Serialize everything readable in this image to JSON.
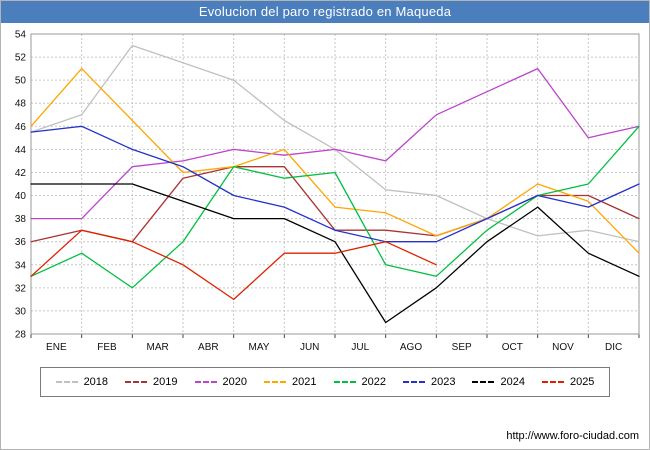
{
  "window": {
    "title": "Evolucion del paro registrado en Maqueda"
  },
  "chart_data": {
    "type": "line",
    "title": "Evolucion del paro registrado en Maqueda",
    "title_bar_color": "#4a7ebc",
    "x_tick_labels": [
      "ENE",
      "FEB",
      "MAR",
      "ABR",
      "MAY",
      "JUN",
      "JUL",
      "AGO",
      "SEP",
      "OCT",
      "NOV",
      "DIC"
    ],
    "ylim": [
      28,
      54
    ],
    "y_ticks": [
      28,
      30,
      32,
      34,
      36,
      38,
      40,
      42,
      44,
      46,
      48,
      50,
      52,
      54
    ],
    "grid": true,
    "legend_position": "bottom",
    "note": "Each series has 13 plotted points: the first at the left plot edge, then one per month gridline ENE-DIC. 2025 ends in AGO.",
    "series": [
      {
        "name": "2018",
        "color": "#c0c0c0",
        "values": [
          45.5,
          47,
          53,
          51.5,
          50,
          46.5,
          44,
          40.5,
          40,
          38,
          36.5,
          37,
          36
        ]
      },
      {
        "name": "2019",
        "color": "#aa3333",
        "values": [
          36,
          37,
          36,
          41.5,
          42.5,
          42.5,
          37,
          37,
          36.5,
          38,
          40,
          40,
          38
        ]
      },
      {
        "name": "2020",
        "color": "#bb44cc",
        "values": [
          38,
          38,
          42.5,
          43,
          44,
          43.5,
          44,
          43,
          47,
          49,
          51,
          45,
          46
        ]
      },
      {
        "name": "2021",
        "color": "#ffa500",
        "values": [
          46,
          51,
          46.5,
          42,
          42.5,
          44,
          39,
          38.5,
          36.5,
          38,
          41,
          39.5,
          35
        ]
      },
      {
        "name": "2022",
        "color": "#00c040",
        "values": [
          33,
          35,
          32,
          36,
          42.5,
          41.5,
          42,
          34,
          33,
          37,
          40,
          41,
          46
        ]
      },
      {
        "name": "2023",
        "color": "#2233cc",
        "values": [
          45.5,
          46,
          44,
          42.5,
          40,
          39,
          37,
          36,
          36,
          38,
          40,
          39,
          41
        ]
      },
      {
        "name": "2024",
        "color": "#000000",
        "values": [
          41,
          41,
          41,
          39.5,
          38,
          38,
          36,
          29,
          32,
          36,
          39,
          35,
          33
        ]
      },
      {
        "name": "2025",
        "color": "#dd2200",
        "values": [
          33,
          37,
          36,
          34,
          31,
          35,
          35,
          36,
          34,
          null,
          null,
          null,
          null
        ]
      }
    ]
  },
  "footer": {
    "url": "http://www.foro-ciudad.com"
  }
}
